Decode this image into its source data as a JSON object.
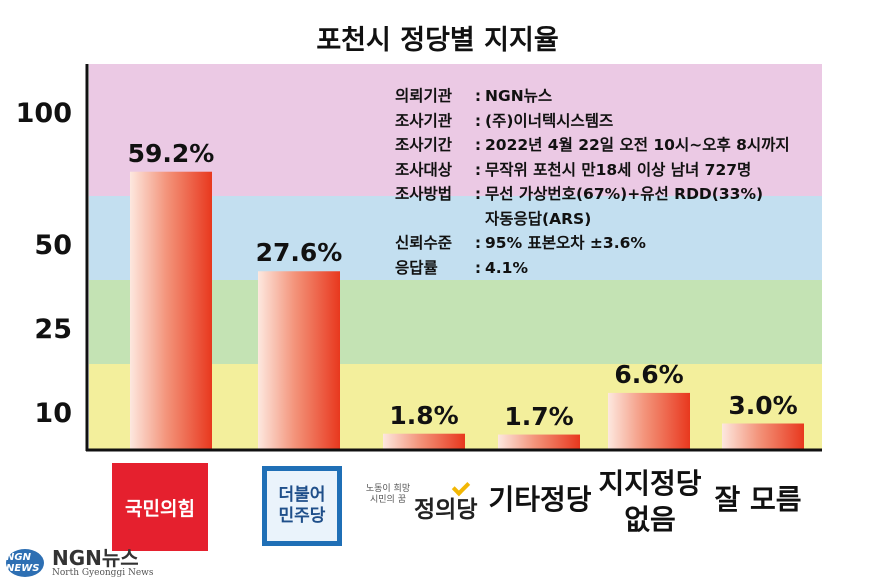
{
  "chart_data": {
    "type": "bar",
    "title": "포천시 정당별 지지율",
    "categories": [
      "국민의힘",
      "더불어민주당",
      "정의당",
      "기타정당",
      "지지정당 없음",
      "잘 모름"
    ],
    "values": [
      59.2,
      27.6,
      1.8,
      1.7,
      6.6,
      3.0
    ],
    "value_labels": [
      "59.2%",
      "27.6%",
      "1.8%",
      "1.7%",
      "6.6%",
      "3.0%"
    ],
    "y_ticks": [
      "100",
      "50",
      "25",
      "10"
    ],
    "y_tick_values": [
      100,
      50,
      25,
      10
    ],
    "ylim": [
      0,
      100
    ],
    "y_scale": "nonlinear (0-10, 10-25, 25-50, 50-100 equal bands)",
    "band_colors": [
      "#f3ef9c",
      "#c4e3b4",
      "#c3dff0",
      "#ebc9e4"
    ],
    "bar_gradient": [
      "#fde8df",
      "#e8381e"
    ],
    "grid": false,
    "legend": "none"
  },
  "survey_info": [
    {
      "key": "의뢰기관",
      "value": "NGN뉴스"
    },
    {
      "key": "조사기관",
      "value": "(주)이너텍시스템즈"
    },
    {
      "key": "조사기간",
      "value": "2022년 4월 22일 오전 10시~오후 8시까지"
    },
    {
      "key": "조사대상",
      "value": "무작위 포천시 만18세 이상 남녀 727명"
    },
    {
      "key": "조사방법",
      "value": "무선 가상번호(67%)+유선 RDD(33%)",
      "value2": "자동응답(ARS)"
    },
    {
      "key": "신뢰수준",
      "value": "95% 표본오차 ±3.6%"
    },
    {
      "key": "응답률",
      "value": "4.1%"
    }
  ],
  "logos": {
    "ppp": "국민의힘",
    "dp_line1": "더불어",
    "dp_line2": "민주당",
    "justice_slogan_1": "노동이 희망",
    "justice_slogan_2": "시민의 꿈",
    "justice_name": "정의당",
    "other_parties": "기타정당",
    "no_party_1": "지지정당",
    "no_party_2": "없음",
    "dont_know": "잘 모름"
  },
  "watermark": {
    "globe_text": "NGN NEWS",
    "name": "NGN뉴스",
    "sub": "North Gyeonggi News"
  }
}
